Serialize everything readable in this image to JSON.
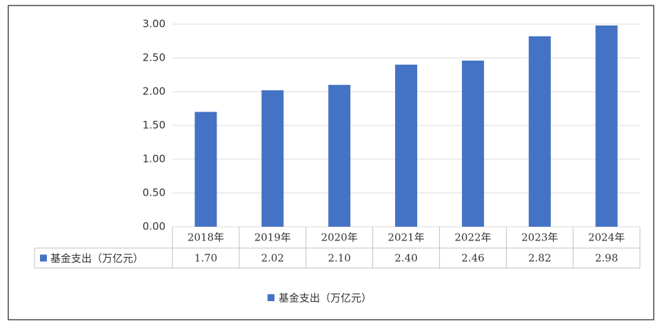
{
  "chart_data": {
    "type": "bar",
    "categories": [
      "2018年",
      "2019年",
      "2020年",
      "2021年",
      "2022年",
      "2023年",
      "2024年"
    ],
    "series": [
      {
        "name": "基金支出（万亿元）",
        "color": "#4472c4",
        "values": [
          1.7,
          2.02,
          2.1,
          2.4,
          2.46,
          2.82,
          2.98
        ],
        "value_labels": [
          "1.70",
          "2.02",
          "2.10",
          "2.40",
          "2.46",
          "2.82",
          "2.98"
        ]
      }
    ],
    "ylim": [
      0,
      3
    ],
    "yticks": [
      {
        "value": 0,
        "label": "0.00"
      },
      {
        "value": 0.5,
        "label": "0.50"
      },
      {
        "value": 1,
        "label": "1.00"
      },
      {
        "value": 1.5,
        "label": "1.50"
      },
      {
        "value": 2,
        "label": "2.00"
      },
      {
        "value": 2.5,
        "label": "2.50"
      },
      {
        "value": 3,
        "label": "3.00"
      }
    ],
    "grid": true,
    "legend": "bottom"
  }
}
